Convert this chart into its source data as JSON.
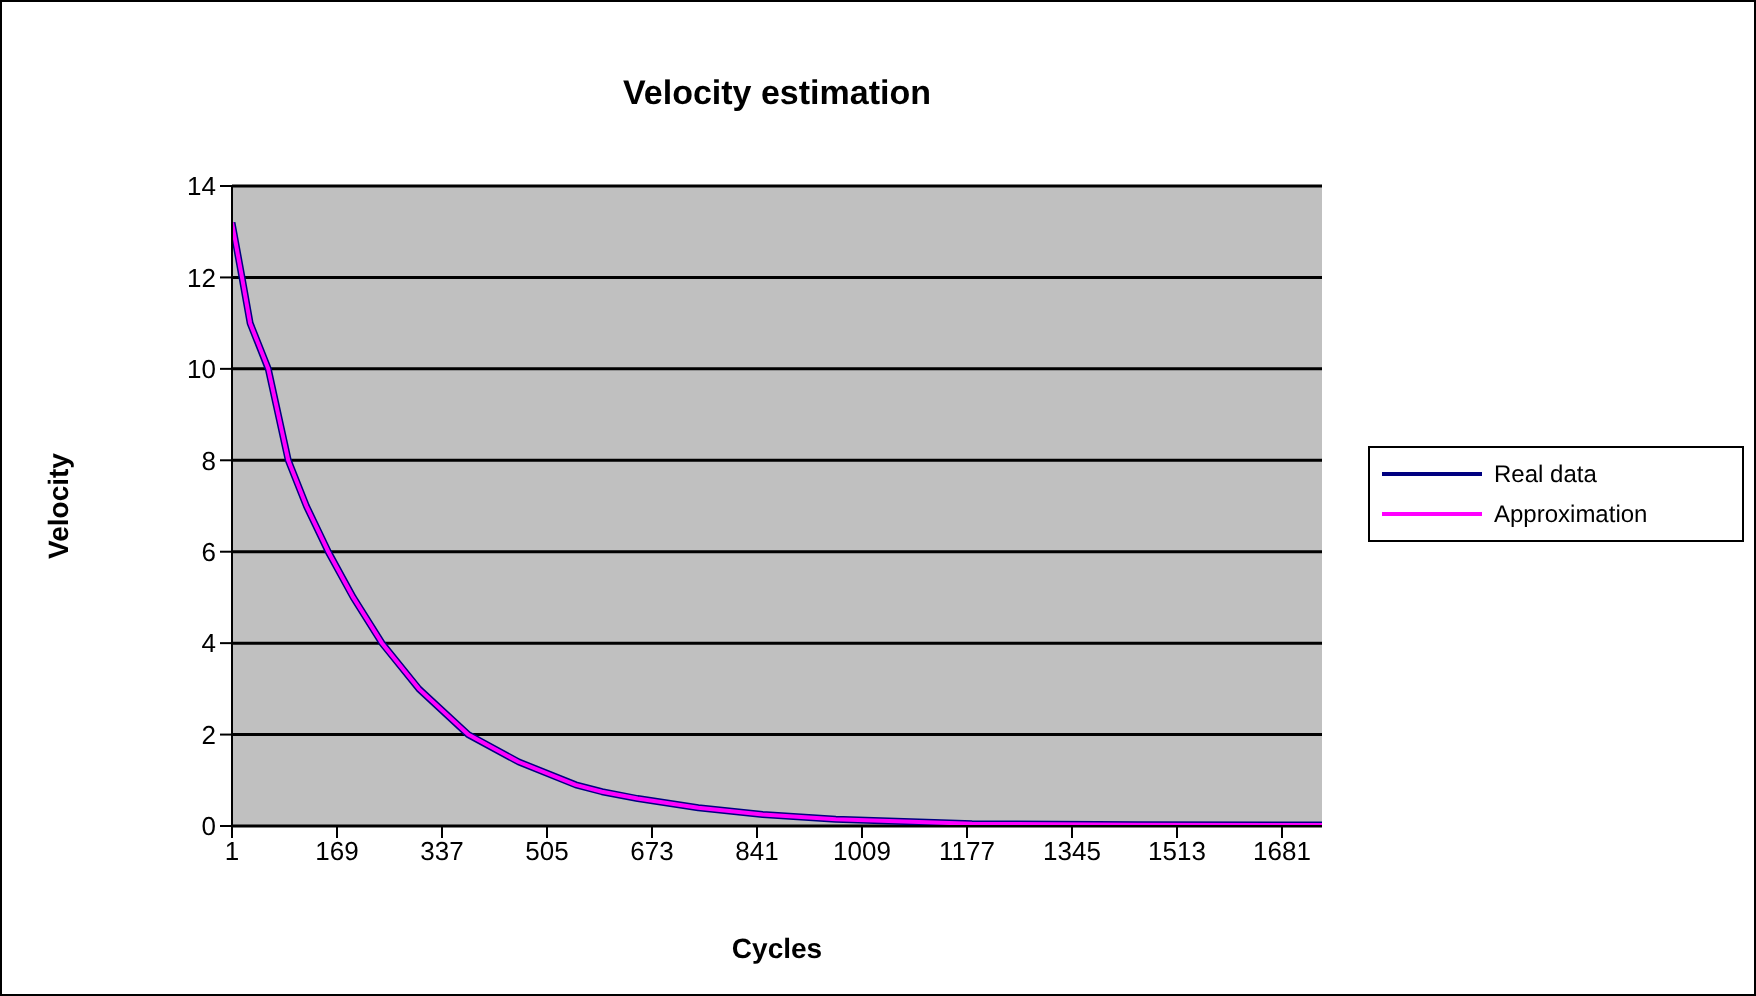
{
  "chart_data": {
    "type": "line",
    "title": "Velocity estimation",
    "xlabel": "Cycles",
    "ylabel": "Velocity",
    "x": [
      1,
      17,
      30,
      59,
      91,
      120,
      155,
      195,
      241,
      300,
      379,
      460,
      551,
      593,
      650,
      747,
      850,
      967,
      1185,
      1450,
      1745
    ],
    "series": [
      {
        "name": "Real data",
        "color": "#000080",
        "values": [
          13.2,
          12,
          11,
          10,
          8,
          7,
          6,
          5,
          4,
          3,
          2,
          1.4,
          0.9,
          0.75,
          0.6,
          0.4,
          0.25,
          0.15,
          0.05,
          0.03,
          0.02
        ]
      },
      {
        "name": "Approximation",
        "color": "#ff00ff",
        "values": [
          13.2,
          12,
          11,
          10,
          8,
          7,
          6,
          5,
          4,
          3,
          2,
          1.4,
          0.9,
          0.75,
          0.6,
          0.4,
          0.25,
          0.15,
          0.05,
          0.03,
          0.02
        ]
      }
    ],
    "xlim": [
      1,
      1745
    ],
    "xticks": [
      1,
      169,
      337,
      505,
      673,
      841,
      1009,
      1177,
      1345,
      1513,
      1681
    ],
    "ylim": [
      0,
      14
    ],
    "yticks": [
      0,
      2,
      4,
      6,
      8,
      10,
      12,
      14
    ],
    "grid": "y",
    "legend": "right",
    "marker": "none",
    "line_style": "solid"
  }
}
